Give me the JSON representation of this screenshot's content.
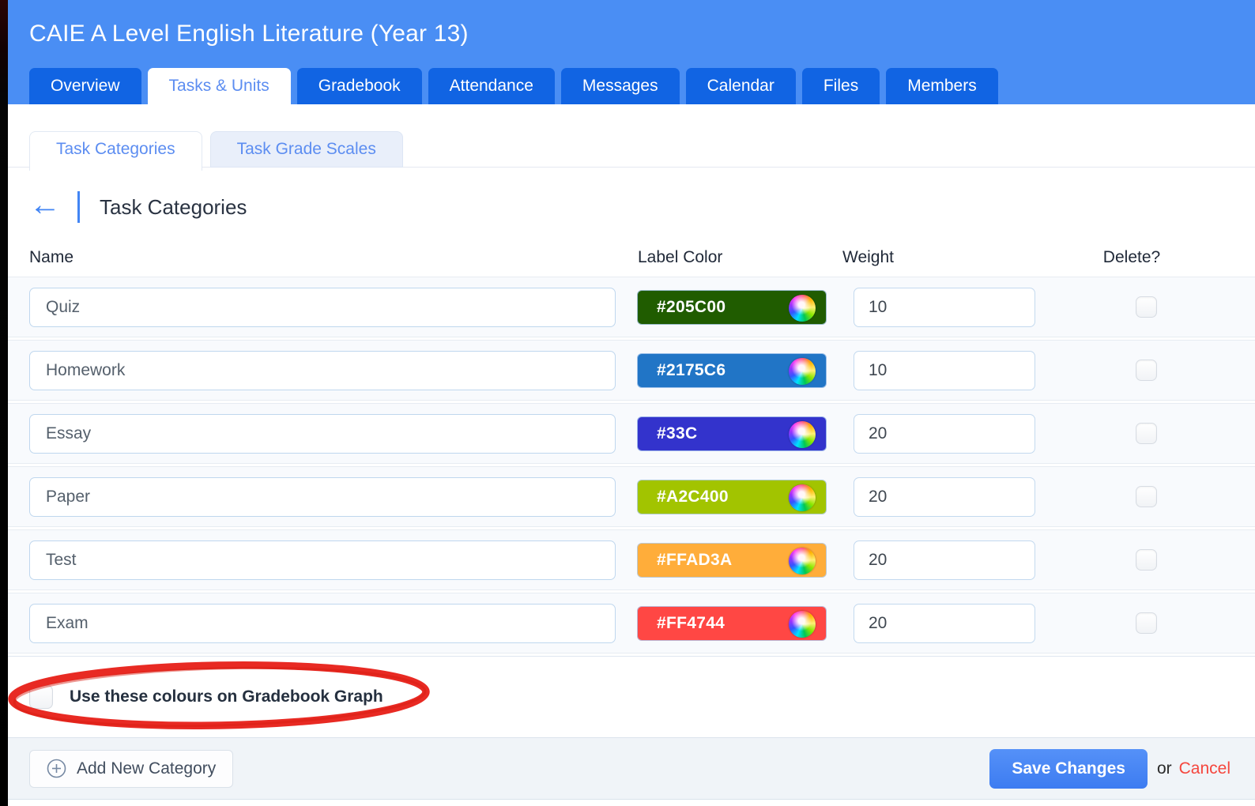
{
  "header": {
    "title": "CAIE A Level English Literature (Year 13)"
  },
  "tabs": [
    {
      "label": "Overview",
      "active": false
    },
    {
      "label": "Tasks & Units",
      "active": true
    },
    {
      "label": "Gradebook",
      "active": false
    },
    {
      "label": "Attendance",
      "active": false
    },
    {
      "label": "Messages",
      "active": false
    },
    {
      "label": "Calendar",
      "active": false
    },
    {
      "label": "Files",
      "active": false
    },
    {
      "label": "Members",
      "active": false
    }
  ],
  "subtabs": [
    {
      "label": "Task Categories",
      "active": true
    },
    {
      "label": "Task Grade Scales",
      "active": false
    }
  ],
  "page": {
    "heading": "Task Categories",
    "back_icon": "←"
  },
  "table": {
    "headers": {
      "name": "Name",
      "color": "Label Color",
      "weight": "Weight",
      "delete": "Delete?"
    },
    "rows": [
      {
        "name": "Quiz",
        "color_hex": "#205C00",
        "weight": "10",
        "delete_checked": false
      },
      {
        "name": "Homework",
        "color_hex": "#2175C6",
        "weight": "10",
        "delete_checked": false
      },
      {
        "name": "Essay",
        "color_hex": "#33C",
        "weight": "20",
        "delete_checked": false
      },
      {
        "name": "Paper",
        "color_hex": "#A2C400",
        "weight": "20",
        "delete_checked": false
      },
      {
        "name": "Test",
        "color_hex": "#FFAD3A",
        "weight": "20",
        "delete_checked": false
      },
      {
        "name": "Exam",
        "color_hex": "#FF4744",
        "weight": "20",
        "delete_checked": false
      }
    ]
  },
  "options": {
    "use_colours_label": "Use these colours on Gradebook Graph",
    "use_colours_checked": false
  },
  "annotation": {
    "type": "hand-drawn-ellipse",
    "color": "#E7211A"
  },
  "footer": {
    "add_button_label": "Add New Category",
    "save_button_label": "Save Changes",
    "or_text": "or",
    "cancel_label": "Cancel"
  },
  "colors": {
    "header_bg": "#4A8EF4",
    "tab_bg": "#1164E3",
    "active_tab_text": "#5C8DF1",
    "accent_blue": "#4285F4",
    "row_bg": "#F8FAFD",
    "footer_bg": "#F0F4F8",
    "save_button_bg": "#4384F3",
    "cancel_red": "#F5463D",
    "annotation_red": "#E7211A"
  }
}
